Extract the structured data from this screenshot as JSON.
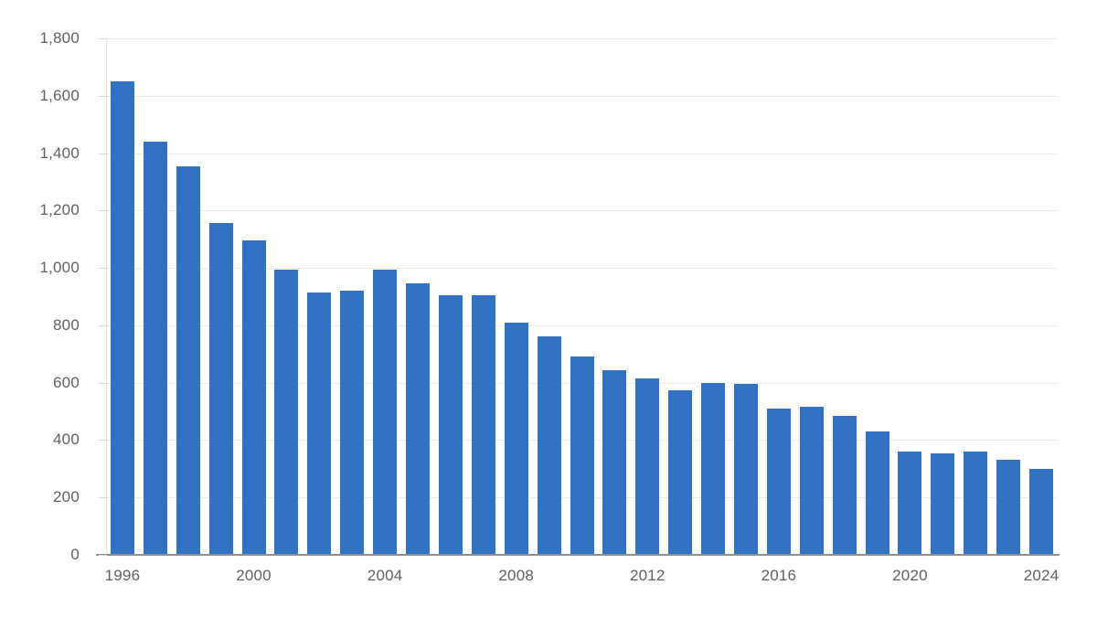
{
  "chart_data": {
    "type": "bar",
    "title": "",
    "xlabel": "",
    "ylabel": "",
    "categories": [
      1996,
      1997,
      1998,
      1999,
      2000,
      2001,
      2002,
      2003,
      2004,
      2005,
      2006,
      2007,
      2008,
      2009,
      2010,
      2011,
      2012,
      2013,
      2014,
      2015,
      2016,
      2017,
      2018,
      2019,
      2020,
      2021,
      2022,
      2023,
      2024
    ],
    "values": [
      1650,
      1440,
      1355,
      1155,
      1095,
      995,
      915,
      920,
      995,
      945,
      905,
      905,
      810,
      760,
      690,
      645,
      615,
      575,
      600,
      595,
      510,
      515,
      485,
      430,
      360,
      355,
      360,
      330,
      300
    ],
    "ylim": [
      0,
      1800
    ],
    "ytick_interval": 200,
    "ytick_labels": [
      "0",
      "200",
      "400",
      "600",
      "800",
      "1,000",
      "1,200",
      "1,400",
      "1,600",
      "1,800"
    ],
    "xtick_labels": [
      "1996",
      "2000",
      "2004",
      "2008",
      "2012",
      "2016",
      "2020",
      "2024"
    ],
    "xtick_every": 4,
    "legend": null,
    "grid": "horizontal",
    "colors": {
      "bar": "#3272c4",
      "gridline": "#ececec",
      "x_axis_line": "#8f8f8f",
      "y_axis_line": "#e4e4e4",
      "tick_label": "#606060",
      "background": "#ffffff"
    }
  }
}
